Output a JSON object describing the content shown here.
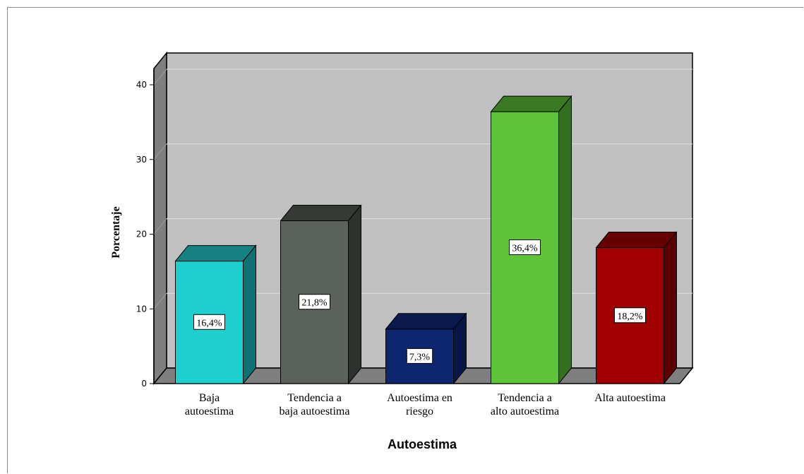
{
  "chart_data": {
    "type": "bar",
    "title": "",
    "xlabel": "Autoestima",
    "ylabel": "Porcentaje",
    "ylim": [
      0,
      40
    ],
    "yticks": [
      0,
      10,
      20,
      30,
      40
    ],
    "grid": true,
    "style": "3d",
    "categories": [
      [
        "Baja",
        "autoestima"
      ],
      [
        "Tendencia a",
        "baja autoestima"
      ],
      [
        "Autoestima en",
        "riesgo"
      ],
      [
        "Tendencia a",
        "alto autoestima"
      ],
      [
        "Alta autoestima"
      ]
    ],
    "values": [
      16.4,
      21.8,
      7.3,
      36.4,
      18.2
    ],
    "data_labels": [
      "16,4%",
      "21,8%",
      "7,3%",
      "36,4%",
      "18,2%"
    ],
    "colors": [
      {
        "front": "#1dcfcf",
        "top": "#158282",
        "side": "#107373"
      },
      {
        "front": "#5b615b",
        "top": "#353a35",
        "side": "#2e322e"
      },
      {
        "front": "#0e2670",
        "top": "#0a1a4f",
        "side": "#081645"
      },
      {
        "front": "#5dc43a",
        "top": "#3a7a25",
        "side": "#346e21"
      },
      {
        "front": "#a00000",
        "top": "#660000",
        "side": "#5a0000"
      }
    ],
    "wall_color": "#c0c0c0",
    "floor_color": "#7f7f7f"
  }
}
